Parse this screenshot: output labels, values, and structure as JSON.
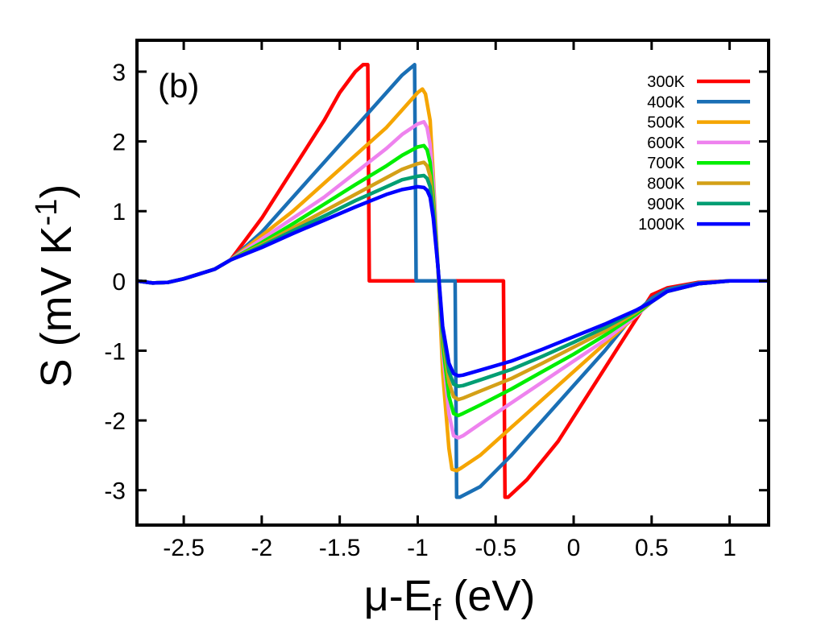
{
  "chart_data": {
    "type": "line",
    "panel_label": "(b)",
    "xlabel_main": "μ-E",
    "xlabel_sub": "f",
    "xlabel_tail": " (eV)",
    "ylabel_main": "S (mV K",
    "ylabel_sup": "-1",
    "ylabel_tail": ")",
    "xlim": [
      -2.8,
      1.25
    ],
    "ylim": [
      -3.5,
      3.45
    ],
    "xticks": [
      {
        "value": -2.5,
        "label": "-2.5"
      },
      {
        "value": -2.0,
        "label": "-2"
      },
      {
        "value": -1.5,
        "label": "-1.5"
      },
      {
        "value": -1.0,
        "label": "-1"
      },
      {
        "value": -0.5,
        "label": "-0.5"
      },
      {
        "value": 0.0,
        "label": "0"
      },
      {
        "value": 0.5,
        "label": "0.5"
      },
      {
        "value": 1.0,
        "label": "1"
      }
    ],
    "yticks": [
      {
        "value": 3,
        "label": "3"
      },
      {
        "value": 2,
        "label": "2"
      },
      {
        "value": 1,
        "label": "1"
      },
      {
        "value": 0,
        "label": "0"
      },
      {
        "value": -1,
        "label": "-1"
      },
      {
        "value": -2,
        "label": "-2"
      },
      {
        "value": -3,
        "label": "-3"
      }
    ],
    "legend_position": "top-right",
    "series": [
      {
        "name": "300K",
        "color": "#ff0000",
        "x": [
          -2.8,
          -2.7,
          -2.6,
          -2.5,
          -2.4,
          -2.3,
          -2.2,
          -2.0,
          -1.8,
          -1.6,
          -1.5,
          -1.4,
          -1.35,
          -1.32,
          -1.31,
          -1.2,
          -1.0,
          -0.8,
          -0.6,
          -0.45,
          -0.44,
          -0.42,
          -0.3,
          -0.1,
          0.1,
          0.3,
          0.5,
          0.6,
          0.8,
          1.0,
          1.25
        ],
        "y": [
          0.0,
          -0.03,
          -0.02,
          0.03,
          0.1,
          0.17,
          0.3,
          0.9,
          1.6,
          2.3,
          2.7,
          3.0,
          3.1,
          3.1,
          0.0,
          0.0,
          0.0,
          0.0,
          0.0,
          0.0,
          -3.1,
          -3.1,
          -2.85,
          -2.3,
          -1.6,
          -0.9,
          -0.2,
          -0.1,
          -0.02,
          0.0,
          0.0
        ]
      },
      {
        "name": "400K",
        "color": "#1a6fb5",
        "x": [
          -2.8,
          -2.7,
          -2.6,
          -2.5,
          -2.4,
          -2.3,
          -2.2,
          -2.0,
          -1.8,
          -1.6,
          -1.4,
          -1.2,
          -1.1,
          -1.02,
          -1.01,
          -0.9,
          -0.76,
          -0.75,
          -0.73,
          -0.6,
          -0.4,
          -0.2,
          0.0,
          0.2,
          0.4,
          0.5,
          0.6,
          0.8,
          1.0,
          1.25
        ],
        "y": [
          0.0,
          -0.03,
          -0.02,
          0.03,
          0.1,
          0.17,
          0.3,
          0.7,
          1.2,
          1.7,
          2.2,
          2.7,
          2.95,
          3.1,
          0.0,
          0.0,
          0.0,
          -3.1,
          -3.1,
          -2.95,
          -2.5,
          -2.0,
          -1.5,
          -1.0,
          -0.45,
          -0.25,
          -0.12,
          -0.03,
          0.0,
          0.0
        ]
      },
      {
        "name": "500K",
        "color": "#f5a500",
        "x": [
          -2.8,
          -2.7,
          -2.6,
          -2.5,
          -2.4,
          -2.3,
          -2.2,
          -2.0,
          -1.8,
          -1.6,
          -1.4,
          -1.2,
          -1.1,
          -1.0,
          -0.97,
          -0.95,
          -0.92,
          -0.9,
          -0.87,
          -0.84,
          -0.8,
          -0.78,
          -0.75,
          -0.72,
          -0.6,
          -0.4,
          -0.2,
          0.0,
          0.2,
          0.4,
          0.5,
          0.6,
          0.8,
          1.0,
          1.25
        ],
        "y": [
          0.0,
          -0.03,
          -0.02,
          0.03,
          0.1,
          0.17,
          0.3,
          0.65,
          1.0,
          1.4,
          1.8,
          2.2,
          2.45,
          2.7,
          2.75,
          2.68,
          2.3,
          1.5,
          0.2,
          -1.3,
          -2.4,
          -2.7,
          -2.72,
          -2.68,
          -2.5,
          -2.1,
          -1.7,
          -1.3,
          -0.9,
          -0.5,
          -0.3,
          -0.15,
          -0.04,
          0.0,
          0.0
        ]
      },
      {
        "name": "600K",
        "color": "#ee82ee",
        "x": [
          -2.8,
          -2.7,
          -2.6,
          -2.5,
          -2.4,
          -2.3,
          -2.2,
          -2.0,
          -1.8,
          -1.6,
          -1.4,
          -1.2,
          -1.1,
          -1.0,
          -0.96,
          -0.94,
          -0.92,
          -0.9,
          -0.87,
          -0.84,
          -0.8,
          -0.77,
          -0.74,
          -0.71,
          -0.6,
          -0.4,
          -0.2,
          0.0,
          0.2,
          0.4,
          0.5,
          0.6,
          0.8,
          1.0,
          1.25
        ],
        "y": [
          0.0,
          -0.03,
          -0.02,
          0.03,
          0.1,
          0.17,
          0.3,
          0.6,
          0.9,
          1.2,
          1.55,
          1.9,
          2.1,
          2.25,
          2.28,
          2.2,
          1.95,
          1.4,
          0.2,
          -1.0,
          -1.9,
          -2.22,
          -2.25,
          -2.22,
          -2.05,
          -1.75,
          -1.45,
          -1.15,
          -0.85,
          -0.5,
          -0.3,
          -0.15,
          -0.04,
          0.0,
          0.0
        ]
      },
      {
        "name": "700K",
        "color": "#00ee00",
        "x": [
          -2.8,
          -2.7,
          -2.6,
          -2.5,
          -2.4,
          -2.3,
          -2.2,
          -2.0,
          -1.8,
          -1.6,
          -1.4,
          -1.2,
          -1.1,
          -1.0,
          -0.96,
          -0.94,
          -0.92,
          -0.9,
          -0.87,
          -0.84,
          -0.8,
          -0.77,
          -0.74,
          -0.71,
          -0.6,
          -0.4,
          -0.2,
          0.0,
          0.2,
          0.4,
          0.5,
          0.6,
          0.8,
          1.0,
          1.25
        ],
        "y": [
          0.0,
          -0.03,
          -0.02,
          0.03,
          0.1,
          0.17,
          0.3,
          0.55,
          0.82,
          1.1,
          1.38,
          1.65,
          1.8,
          1.92,
          1.94,
          1.88,
          1.7,
          1.2,
          0.2,
          -0.9,
          -1.65,
          -1.9,
          -1.93,
          -1.9,
          -1.78,
          -1.55,
          -1.3,
          -1.05,
          -0.78,
          -0.48,
          -0.3,
          -0.15,
          -0.04,
          0.0,
          0.0
        ]
      },
      {
        "name": "800K",
        "color": "#d4a017",
        "x": [
          -2.8,
          -2.7,
          -2.6,
          -2.5,
          -2.4,
          -2.3,
          -2.2,
          -2.0,
          -1.8,
          -1.6,
          -1.4,
          -1.2,
          -1.1,
          -1.0,
          -0.96,
          -0.94,
          -0.92,
          -0.9,
          -0.87,
          -0.84,
          -0.8,
          -0.77,
          -0.74,
          -0.71,
          -0.6,
          -0.4,
          -0.2,
          0.0,
          0.2,
          0.4,
          0.5,
          0.6,
          0.8,
          1.0,
          1.25
        ],
        "y": [
          0.0,
          -0.03,
          -0.02,
          0.03,
          0.1,
          0.17,
          0.3,
          0.52,
          0.76,
          1.0,
          1.24,
          1.48,
          1.6,
          1.68,
          1.7,
          1.65,
          1.5,
          1.1,
          0.2,
          -0.8,
          -1.45,
          -1.66,
          -1.7,
          -1.68,
          -1.58,
          -1.4,
          -1.18,
          -0.95,
          -0.72,
          -0.45,
          -0.3,
          -0.15,
          -0.04,
          0.0,
          0.0
        ]
      },
      {
        "name": "900K",
        "color": "#009e73",
        "x": [
          -2.8,
          -2.7,
          -2.6,
          -2.5,
          -2.4,
          -2.3,
          -2.2,
          -2.0,
          -1.8,
          -1.6,
          -1.4,
          -1.2,
          -1.1,
          -1.0,
          -0.96,
          -0.94,
          -0.92,
          -0.9,
          -0.87,
          -0.84,
          -0.8,
          -0.77,
          -0.74,
          -0.71,
          -0.6,
          -0.4,
          -0.2,
          0.0,
          0.2,
          0.4,
          0.5,
          0.6,
          0.8,
          1.0,
          1.25
        ],
        "y": [
          0.0,
          -0.03,
          -0.02,
          0.03,
          0.1,
          0.17,
          0.3,
          0.5,
          0.72,
          0.93,
          1.15,
          1.35,
          1.45,
          1.5,
          1.51,
          1.47,
          1.35,
          1.0,
          0.2,
          -0.72,
          -1.3,
          -1.48,
          -1.51,
          -1.5,
          -1.42,
          -1.27,
          -1.08,
          -0.88,
          -0.67,
          -0.43,
          -0.3,
          -0.15,
          -0.04,
          0.0,
          0.0
        ]
      },
      {
        "name": "1000K",
        "color": "#0000ff",
        "x": [
          -2.8,
          -2.7,
          -2.6,
          -2.5,
          -2.4,
          -2.3,
          -2.2,
          -2.0,
          -1.8,
          -1.6,
          -1.4,
          -1.2,
          -1.1,
          -1.0,
          -0.96,
          -0.94,
          -0.92,
          -0.9,
          -0.87,
          -0.84,
          -0.8,
          -0.77,
          -0.74,
          -0.71,
          -0.6,
          -0.4,
          -0.2,
          0.0,
          0.2,
          0.4,
          0.5,
          0.6,
          0.8,
          1.0,
          1.25
        ],
        "y": [
          0.0,
          -0.03,
          -0.02,
          0.03,
          0.1,
          0.17,
          0.3,
          0.48,
          0.68,
          0.87,
          1.06,
          1.24,
          1.31,
          1.35,
          1.34,
          1.3,
          1.2,
          0.9,
          0.2,
          -0.65,
          -1.18,
          -1.33,
          -1.36,
          -1.35,
          -1.28,
          -1.15,
          -0.98,
          -0.8,
          -0.62,
          -0.42,
          -0.3,
          -0.15,
          -0.04,
          0.0,
          0.0
        ]
      }
    ]
  }
}
